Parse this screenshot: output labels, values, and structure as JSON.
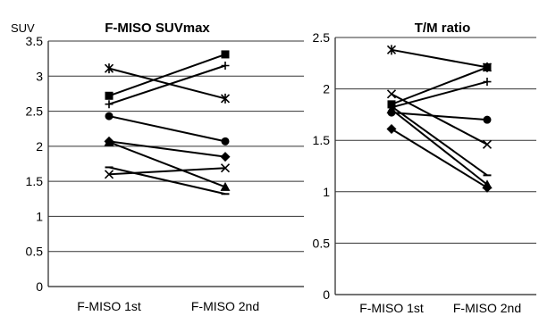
{
  "chart_data": [
    {
      "type": "line",
      "title": "F-MISO SUVmax",
      "ylabel": "SUV",
      "categories": [
        "F-MISO 1st",
        "F-MISO 2nd"
      ],
      "ylim": [
        0,
        3.5
      ],
      "yticks": [
        "0",
        "0.5",
        "1",
        "1.5",
        "2",
        "2.5",
        "3",
        "3.5"
      ],
      "grid": true,
      "series": [
        {
          "values": [
            2.72,
            3.31
          ],
          "marker": "square"
        },
        {
          "values": [
            2.6,
            3.15
          ],
          "marker": "plus"
        },
        {
          "values": [
            3.11,
            2.68
          ],
          "marker": "asterisk"
        },
        {
          "values": [
            2.43,
            2.07
          ],
          "marker": "circle"
        },
        {
          "values": [
            2.07,
            1.85
          ],
          "marker": "diamond"
        },
        {
          "values": [
            2.06,
            1.42
          ],
          "marker": "triangle"
        },
        {
          "values": [
            1.7,
            1.32
          ],
          "marker": "dash"
        },
        {
          "values": [
            1.6,
            1.69
          ],
          "marker": "x"
        }
      ]
    },
    {
      "type": "line",
      "title": "T/M ratio",
      "ylabel": "",
      "categories": [
        "F-MISO 1st",
        "F-MISO 2nd"
      ],
      "ylim": [
        0,
        2.5
      ],
      "yticks": [
        "0",
        "0.5",
        "1",
        "1.5",
        "2",
        "2.5"
      ],
      "grid": true,
      "series": [
        {
          "values": [
            2.38,
            2.21
          ],
          "marker": "asterisk"
        },
        {
          "values": [
            1.85,
            2.21
          ],
          "marker": "square"
        },
        {
          "values": [
            1.82,
            2.07
          ],
          "marker": "plus"
        },
        {
          "values": [
            1.77,
            1.7
          ],
          "marker": "circle"
        },
        {
          "values": [
            1.95,
            1.46
          ],
          "marker": "x"
        },
        {
          "values": [
            1.83,
            1.16
          ],
          "marker": "dash"
        },
        {
          "values": [
            1.8,
            1.07
          ],
          "marker": "triangle"
        },
        {
          "values": [
            1.61,
            1.04
          ],
          "marker": "diamond"
        }
      ]
    }
  ]
}
